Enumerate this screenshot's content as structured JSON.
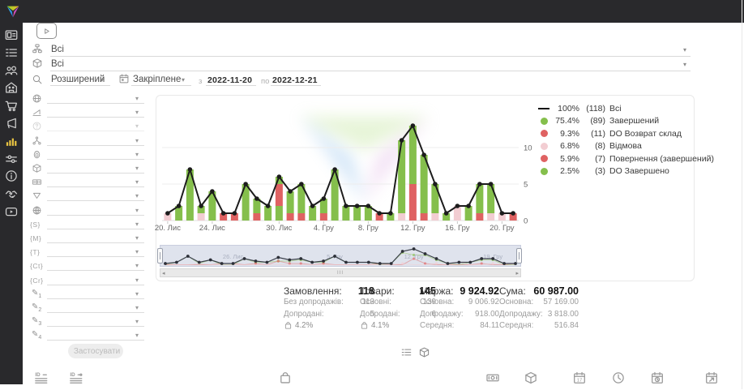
{
  "topbar": {
    "logo_icon": "brand-triangle-logo"
  },
  "sidebar": {
    "items": [
      "dashboard-board-icon",
      "orders-list-icon",
      "customers-icon",
      "warehouse-icon",
      "cart-icon",
      "megaphone-icon",
      "analytics-chart-icon",
      "sliders-icon",
      "info-icon",
      "handshake-icon",
      "video-play-icon"
    ],
    "active_index": 6,
    "active_color": "#e8c342"
  },
  "header": {
    "site_filter": {
      "value": "Всі",
      "icon": "site-tree-icon"
    },
    "product_filter": {
      "value": "Всі",
      "icon": "package-icon"
    },
    "search_mode": {
      "value": "Розширений",
      "icon": "search-icon"
    },
    "period_mode": {
      "value": "Закріплене",
      "icon": "calendar-icon"
    },
    "from_label": "з",
    "date_from": "2022-11-20",
    "to_label": "по",
    "date_to": "2022-12-21",
    "video_button_icon": "video-play-icon"
  },
  "filters": {
    "apply_label": "Застосувати",
    "rows": [
      {
        "icon": "globe-icon"
      },
      {
        "icon": "ramp-icon"
      },
      {
        "icon": "question-icon",
        "disabled": true
      },
      {
        "icon": "hierarchy-icon"
      },
      {
        "icon": "fingerprint-icon"
      },
      {
        "icon": "package-icon"
      },
      {
        "icon": "banknote-icon"
      },
      {
        "icon": "funnel-icon"
      },
      {
        "icon": "web-icon"
      },
      {
        "icon": "token",
        "label": "{S}"
      },
      {
        "icon": "token",
        "label": "{M}"
      },
      {
        "icon": "token",
        "label": "{T}"
      },
      {
        "icon": "token",
        "label": "{Ct}"
      },
      {
        "icon": "token",
        "label": "{Cr}"
      },
      {
        "icon": "pencil",
        "label": "1"
      },
      {
        "icon": "pencil",
        "label": "2"
      },
      {
        "icon": "pencil",
        "label": "3"
      },
      {
        "icon": "pencil",
        "label": "4"
      }
    ]
  },
  "chart_data": {
    "type": "bar+line",
    "days": [
      "2022-11-20",
      "2022-11-21",
      "2022-11-22",
      "2022-11-23",
      "2022-11-24",
      "2022-11-25",
      "2022-11-26",
      "2022-11-27",
      "2022-11-28",
      "2022-11-29",
      "2022-11-30",
      "2022-12-01",
      "2022-12-02",
      "2022-12-03",
      "2022-12-04",
      "2022-12-05",
      "2022-12-06",
      "2022-12-07",
      "2022-12-08",
      "2022-12-09",
      "2022-12-10",
      "2022-12-11",
      "2022-12-12",
      "2022-12-13",
      "2022-12-14",
      "2022-12-15",
      "2022-12-16",
      "2022-12-17",
      "2022-12-18",
      "2022-12-19",
      "2022-12-20",
      "2022-12-21"
    ],
    "line": {
      "name": "Всі",
      "values": [
        1,
        2,
        7,
        2,
        4,
        1,
        1,
        5,
        3,
        2,
        6,
        4,
        5,
        2,
        3,
        7,
        2,
        2,
        2,
        1,
        1,
        11,
        13,
        9,
        5,
        1,
        2,
        2,
        5,
        5,
        1,
        1
      ]
    },
    "stacks": [
      [
        [
          "p",
          1
        ]
      ],
      [
        [
          "g",
          2
        ]
      ],
      [
        [
          "g",
          7
        ]
      ],
      [
        [
          "p",
          1
        ],
        [
          "g",
          1
        ]
      ],
      [
        [
          "g",
          4
        ]
      ],
      [
        [
          "r",
          1
        ]
      ],
      [
        [
          "r",
          1
        ]
      ],
      [
        [
          "g",
          5
        ]
      ],
      [
        [
          "r",
          1
        ],
        [
          "g",
          2
        ]
      ],
      [
        [
          "g",
          2
        ]
      ],
      [
        [
          "g",
          2
        ],
        [
          "r",
          3
        ],
        [
          "g",
          1
        ]
      ],
      [
        [
          "r",
          1
        ],
        [
          "g",
          3
        ]
      ],
      [
        [
          "r",
          1
        ],
        [
          "g",
          4
        ]
      ],
      [
        [
          "g",
          2
        ]
      ],
      [
        [
          "r",
          1
        ],
        [
          "g",
          2
        ]
      ],
      [
        [
          "g",
          7
        ]
      ],
      [
        [
          "g",
          2
        ]
      ],
      [
        [
          "g",
          2
        ]
      ],
      [
        [
          "g",
          2
        ]
      ],
      [
        [
          "r",
          1
        ]
      ],
      [
        [
          "g",
          1
        ]
      ],
      [
        [
          "p",
          1
        ],
        [
          "g",
          10
        ]
      ],
      [
        [
          "r",
          5
        ],
        [
          "g",
          8
        ]
      ],
      [
        [
          "r",
          1
        ],
        [
          "g",
          8
        ]
      ],
      [
        [
          "p",
          1
        ],
        [
          "g",
          4
        ]
      ],
      [
        [
          "g",
          1
        ]
      ],
      [
        [
          "p",
          2
        ]
      ],
      [
        [
          "g",
          2
        ]
      ],
      [
        [
          "r",
          1
        ],
        [
          "g",
          4
        ]
      ],
      [
        [
          "p",
          1
        ],
        [
          "g",
          4
        ]
      ],
      [
        [
          "p",
          1
        ]
      ],
      [
        [
          "r",
          1
        ]
      ]
    ],
    "x_ticks": [
      {
        "i": 0,
        "label": "20. Лис"
      },
      {
        "i": 4,
        "label": "24. Лис"
      },
      {
        "i": 10,
        "label": "30. Лис"
      },
      {
        "i": 14,
        "label": "4. Гру"
      },
      {
        "i": 18,
        "label": "8. Гру"
      },
      {
        "i": 22,
        "label": "12. Гру"
      },
      {
        "i": 26,
        "label": "16. Гру"
      },
      {
        "i": 30,
        "label": "20. Гру"
      }
    ],
    "y_ticks": [
      0,
      5,
      10
    ],
    "ylim": [
      0,
      14
    ],
    "colors": {
      "g": "#85bf4c",
      "r": "#df6262",
      "p": "#f2cdd2",
      "line": "#1c1c1c"
    },
    "legend_position": "right",
    "legend": [
      {
        "pct": "100%",
        "count": "(118)",
        "label": "Всі",
        "type": "line"
      },
      {
        "pct": "75.4%",
        "count": "(89)",
        "label": "Завершений",
        "color": "g"
      },
      {
        "pct": "9.3%",
        "count": "(11)",
        "label": "DO Возврат склад",
        "color": "r"
      },
      {
        "pct": "6.8%",
        "count": "(8)",
        "label": "Відмова",
        "color": "p"
      },
      {
        "pct": "5.9%",
        "count": "(7)",
        "label": "Повернення (завершений)",
        "color": "r"
      },
      {
        "pct": "2.5%",
        "count": "(3)",
        "label": "DO Завершено",
        "color": "g"
      }
    ],
    "minimap_labels": [
      {
        "i": 6,
        "label": "26. Лис"
      },
      {
        "i": 15,
        "label": "5. Гру"
      },
      {
        "i": 22,
        "label": "12. Гру"
      },
      {
        "i": 29,
        "label": "19. Гру"
      }
    ]
  },
  "scrollbar": {
    "left_arrow": "◂",
    "right_arrow": "▸",
    "grip": "III"
  },
  "stats": {
    "columns": [
      {
        "title": "Замовлення:",
        "value": "118",
        "rows": [
          [
            "Без допродажів:",
            "113"
          ],
          [
            "Допродані:",
            "5"
          ]
        ],
        "rate": "4.2%",
        "rate_icon": "bag-icon"
      },
      {
        "title": "Товари:",
        "value": "145",
        "rows": [
          [
            "Основні:",
            "139"
          ],
          [
            "Допродані:",
            "6"
          ]
        ],
        "rate": "4.1%",
        "rate_icon": "bag-icon"
      },
      {
        "title": "Маржа:",
        "value": "9 924.92",
        "rows": [
          [
            "Основна:",
            "9 006.92"
          ],
          [
            "Допродажу:",
            "918.00"
          ],
          [
            "Середня:",
            "84.11"
          ]
        ]
      },
      {
        "title": "Сума:",
        "value": "60 987.00",
        "rows": [
          [
            "Основна:",
            "57 169.00"
          ],
          [
            "Допродажу:",
            "3 818.00"
          ],
          [
            "Середня:",
            "516.84"
          ]
        ]
      }
    ]
  },
  "toggles": [
    "list-chart-icon",
    "package-icon"
  ],
  "bottom_row": {
    "calendar_day": "17",
    "icons": [
      {
        "name": "id-sort-icon",
        "x": 42
      },
      {
        "name": "id-order-icon",
        "x": 85
      },
      {
        "name": "bag-icon",
        "x": 343
      },
      {
        "name": "banknote-icon",
        "x": 599
      },
      {
        "name": "package-icon",
        "x": 646
      },
      {
        "name": "calendar-date-icon",
        "x": 706
      },
      {
        "name": "clock-icon",
        "x": 754
      },
      {
        "name": "calendar-clock-icon",
        "x": 802
      },
      {
        "name": "calendar-export-icon",
        "x": 869
      }
    ]
  }
}
